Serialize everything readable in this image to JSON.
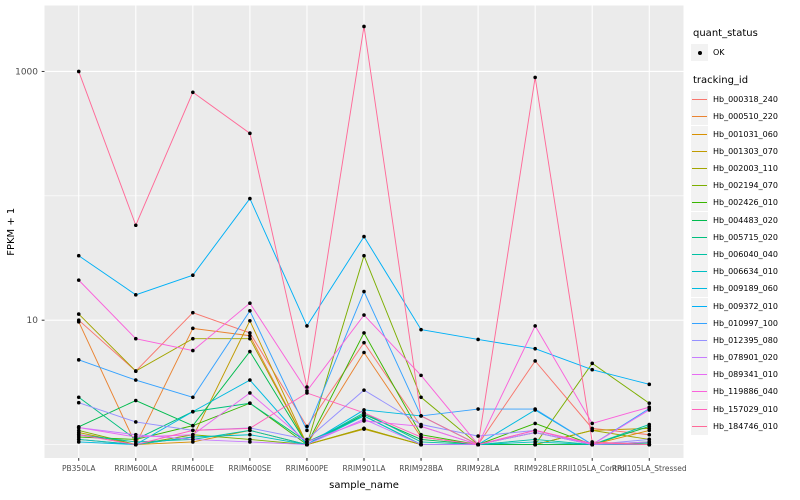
{
  "figure": {
    "panel_bg": "#EBEBEB",
    "grid_color": "#FFFFFF",
    "tick_color": "#333333",
    "tick_label_color": "#4D4D4D",
    "point_color": "#000000"
  },
  "chart_data": {
    "type": "line",
    "title": "",
    "xlabel": "sample_name",
    "ylabel": "FPKM + 1",
    "y_scale": "log10",
    "y_domain": [
      0.78,
      3390
    ],
    "y_major_ticks": [
      10,
      1000
    ],
    "y_tick_labels": [
      "10",
      "1000"
    ],
    "y_minor_gridlines": [
      1,
      100
    ],
    "grid": true,
    "legend_position": "right",
    "point_shape": "filled-circle-black",
    "categories": [
      "PB350LA",
      "RRIM600LA",
      "RRIM600LE",
      "RRIM600SE",
      "RRIM600PE",
      "RRIM901LA",
      "RRIM928BA",
      "RRIM928LA",
      "RRIM928LE",
      "RRII105LA_Control",
      "RRII105LA_Stressed"
    ],
    "legend": {
      "quant_status": {
        "title": "quant_status",
        "items": [
          {
            "label": "OK",
            "icon": "point-key-icon"
          }
        ]
      },
      "tracking_id": {
        "title": "tracking_id",
        "icon": "line-key-icon"
      }
    },
    "series": [
      {
        "name": "Hb_000318_240",
        "color": "#F8766D",
        "values": [
          10,
          3.9,
          11.5,
          7.9,
          1.4,
          6.6,
          1.4,
          1.0,
          4.7,
          1.35,
          1.2
        ]
      },
      {
        "name": "Hb_000510_220",
        "color": "#EA8331",
        "values": [
          9.7,
          1.0,
          8.6,
          7.5,
          1.0,
          5.5,
          1.15,
          1.0,
          1.0,
          1.0,
          1.0
        ]
      },
      {
        "name": "Hb_001031_060",
        "color": "#D89000",
        "values": [
          1.1,
          1.0,
          1.05,
          1.3,
          1.0,
          1.35,
          1.0,
          1.0,
          1.0,
          1.0,
          1.3
        ]
      },
      {
        "name": "Hb_001303_070",
        "color": "#C09B00",
        "values": [
          1.25,
          1.0,
          1.15,
          9.9,
          1.0,
          1.33,
          1.0,
          1.0,
          1.0,
          1.3,
          1.35
        ]
      },
      {
        "name": "Hb_002003_110",
        "color": "#A3A500",
        "values": [
          11.2,
          3.9,
          7.1,
          7.1,
          1.0,
          1.35,
          1.0,
          1.0,
          1.0,
          1.3,
          1.1
        ]
      },
      {
        "name": "Hb_002194_070",
        "color": "#7CAE00",
        "values": [
          1.3,
          1.0,
          1.2,
          1.1,
          1.0,
          33,
          2.4,
          1.0,
          1.0,
          4.5,
          2.15
        ]
      },
      {
        "name": "Hb_002426_010",
        "color": "#39B600",
        "values": [
          1.15,
          1.1,
          1.42,
          2.15,
          1.0,
          7.9,
          1.2,
          1.0,
          1.48,
          1.0,
          1.05
        ]
      },
      {
        "name": "Hb_004483_020",
        "color": "#00BB4E",
        "values": [
          1.39,
          2.26,
          1.42,
          5.6,
          1.0,
          1.75,
          1.1,
          1.0,
          1.0,
          1.0,
          1.4
        ]
      },
      {
        "name": "Hb_005715_020",
        "color": "#00BF7D",
        "values": [
          2.4,
          1.1,
          1.84,
          2.15,
          1.05,
          1.7,
          1.0,
          1.0,
          1.25,
          1.0,
          1.03
        ]
      },
      {
        "name": "Hb_006040_040",
        "color": "#00C1A3",
        "values": [
          1.2,
          1.05,
          1.1,
          1.3,
          1.0,
          1.8,
          1.05,
          1.0,
          1.1,
          1.0,
          1.45
        ]
      },
      {
        "name": "Hb_006634_010",
        "color": "#00BFC4",
        "values": [
          1.1,
          1.0,
          1.15,
          1.2,
          1.0,
          1.7,
          1.0,
          1.0,
          1.05,
          1.0,
          1.0
        ]
      },
      {
        "name": "Hb_009189_060",
        "color": "#00BAE0",
        "values": [
          1.05,
          1.0,
          1.84,
          3.3,
          1.0,
          1.9,
          1.7,
          1.0,
          1.9,
          1.0,
          1.0
        ]
      },
      {
        "name": "Hb_009372_010",
        "color": "#00B0F6",
        "values": [
          33,
          16,
          23,
          95,
          9.0,
          47,
          8.4,
          7.0,
          5.9,
          4.0,
          3.05
        ]
      },
      {
        "name": "Hb_010997_100",
        "color": "#35A2FF",
        "values": [
          4.8,
          3.3,
          2.4,
          11.9,
          1.3,
          17,
          1.7,
          1.93,
          1.93,
          1.0,
          1.95
        ]
      },
      {
        "name": "Hb_012395_080",
        "color": "#9590FF",
        "values": [
          2.17,
          1.52,
          1.3,
          1.36,
          1.1,
          2.74,
          1.45,
          1.17,
          1.3,
          1.0,
          1.1
        ]
      },
      {
        "name": "Hb_078901_020",
        "color": "#C77CFF",
        "values": [
          1.37,
          1.2,
          1.1,
          1.05,
          1.0,
          1.6,
          1.0,
          1.0,
          1.25,
          1.0,
          1.05
        ]
      },
      {
        "name": "Hb_089341_010",
        "color": "#E76BF3",
        "values": [
          1.37,
          1.15,
          1.2,
          2.6,
          1.05,
          1.55,
          1.4,
          1.0,
          1.3,
          1.0,
          1.9
        ]
      },
      {
        "name": "Hb_119886_040",
        "color": "#FA62DB",
        "values": [
          21,
          7.1,
          5.7,
          13.7,
          2.7,
          11,
          3.6,
          1.0,
          9.0,
          1.48,
          2.0
        ]
      },
      {
        "name": "Hb_157029_010",
        "color": "#FF62BC",
        "values": [
          1.2,
          1.0,
          1.3,
          1.35,
          2.6,
          1.8,
          1.15,
          1.0,
          1.3,
          1.02,
          1.0
        ]
      },
      {
        "name": "Hb_184746_010",
        "color": "#FF6A98",
        "values": [
          1000,
          58,
          680,
          318,
          2.9,
          2300,
          1.7,
          1.0,
          895,
          1.05,
          1.0
        ]
      }
    ]
  }
}
